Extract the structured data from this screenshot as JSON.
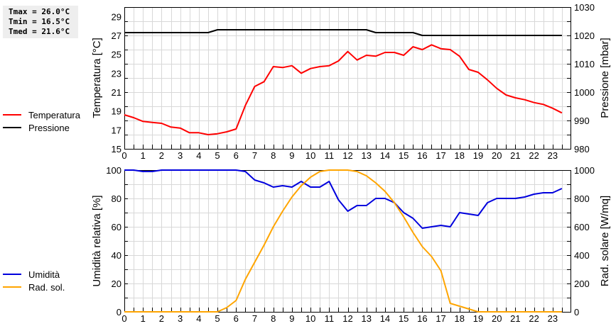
{
  "stats": {
    "tmax": "Tmax = 26.0°C",
    "tmin": "Tmin = 16.5°C",
    "tmed": "Tmed = 21.6°C"
  },
  "legend_top": [
    {
      "label": "Temperatura",
      "color": "#ff0000"
    },
    {
      "label": "Pressione",
      "color": "#000000"
    }
  ],
  "legend_bottom": [
    {
      "label": "Umidità",
      "color": "#0000dd"
    },
    {
      "label": "Rad. sol.",
      "color": "#ffa500"
    }
  ],
  "chart_data": [
    {
      "type": "line",
      "title": "",
      "xlabel": "",
      "ylabel": "Temperatura [°C]",
      "y2label": "Pressione [mbar]",
      "ylim": [
        15,
        30
      ],
      "y2lim": [
        980,
        1030
      ],
      "yticks": [
        15,
        17,
        19,
        21,
        23,
        25,
        27,
        29
      ],
      "y2ticks": [
        980,
        990,
        1000,
        1010,
        1020,
        1030
      ],
      "xticks": [
        0,
        1,
        2,
        3,
        4,
        5,
        6,
        7,
        8,
        9,
        10,
        11,
        12,
        13,
        14,
        15,
        16,
        17,
        18,
        19,
        20,
        21,
        22,
        23
      ],
      "grid": true,
      "legend_position": "left",
      "x": [
        0,
        0.5,
        1,
        1.5,
        2,
        2.5,
        3,
        3.5,
        4,
        4.5,
        5,
        5.5,
        6,
        6.5,
        7,
        7.5,
        8,
        8.5,
        9,
        9.5,
        10,
        10.5,
        11,
        11.5,
        12,
        12.5,
        13,
        13.5,
        14,
        14.5,
        15,
        15.5,
        16,
        16.5,
        17,
        17.5,
        18,
        18.5,
        19,
        19.5,
        20,
        20.5,
        21,
        21.5,
        22,
        22.5,
        23,
        23.5
      ],
      "series": [
        {
          "name": "Temperatura",
          "axis": "left",
          "color": "#ff0000",
          "values": [
            18.6,
            18.3,
            17.9,
            17.8,
            17.7,
            17.3,
            17.2,
            16.7,
            16.7,
            16.5,
            16.6,
            16.8,
            17.1,
            19.6,
            21.6,
            22.1,
            23.7,
            23.6,
            23.8,
            23.0,
            23.5,
            23.7,
            23.8,
            24.3,
            25.3,
            24.4,
            24.9,
            24.8,
            25.2,
            25.2,
            24.9,
            25.8,
            25.5,
            26.0,
            25.6,
            25.5,
            24.8,
            23.4,
            23.1,
            22.3,
            21.4,
            20.7,
            20.4,
            20.2,
            19.9,
            19.7,
            19.3,
            18.8
          ]
        },
        {
          "name": "Pressione",
          "axis": "right",
          "color": "#000000",
          "values": [
            1021,
            1021,
            1021,
            1021,
            1021,
            1021,
            1021,
            1021,
            1021,
            1021,
            1022,
            1022,
            1022,
            1022,
            1022,
            1022,
            1022,
            1022,
            1022,
            1022,
            1022,
            1022,
            1022,
            1022,
            1022,
            1022,
            1022,
            1021,
            1021,
            1021,
            1021,
            1021,
            1020,
            1020,
            1020,
            1020,
            1020,
            1020,
            1020,
            1020,
            1020,
            1020,
            1020,
            1020,
            1020,
            1020,
            1020,
            1020
          ]
        }
      ]
    },
    {
      "type": "line",
      "title": "",
      "xlabel": "",
      "ylabel": "Umidità relativa [%]",
      "y2label": "Rad. solare [W/mq]",
      "ylim": [
        0,
        100
      ],
      "y2lim": [
        0,
        1000
      ],
      "yticks": [
        0,
        20,
        40,
        60,
        80,
        100
      ],
      "y2ticks": [
        0,
        200,
        400,
        600,
        800,
        1000
      ],
      "xticks": [
        0,
        1,
        2,
        3,
        4,
        5,
        6,
        7,
        8,
        9,
        10,
        11,
        12,
        13,
        14,
        15,
        16,
        17,
        18,
        19,
        20,
        21,
        22,
        23
      ],
      "grid": true,
      "legend_position": "left",
      "x": [
        0,
        0.5,
        1,
        1.5,
        2,
        2.5,
        3,
        3.5,
        4,
        4.5,
        5,
        5.5,
        6,
        6.5,
        7,
        7.5,
        8,
        8.5,
        9,
        9.5,
        10,
        10.5,
        11,
        11.5,
        12,
        12.5,
        13,
        13.5,
        14,
        14.5,
        15,
        15.5,
        16,
        16.5,
        17,
        17.5,
        18,
        18.5,
        19,
        19.5,
        20,
        20.5,
        21,
        21.5,
        22,
        22.5,
        23,
        23.5
      ],
      "series": [
        {
          "name": "Umidità",
          "axis": "left",
          "color": "#0000dd",
          "values": [
            100,
            100,
            99,
            99,
            100,
            100,
            100,
            100,
            100,
            100,
            100,
            100,
            100,
            99,
            93,
            91,
            88,
            89,
            88,
            92,
            88,
            88,
            92,
            79,
            71,
            75,
            75,
            80,
            80,
            77,
            70,
            66,
            59,
            60,
            61,
            60,
            70,
            69,
            68,
            77,
            80,
            80,
            80,
            81,
            83,
            84,
            84,
            87
          ]
        },
        {
          "name": "Rad. sol.",
          "axis": "right",
          "color": "#ffa500",
          "values": [
            0,
            0,
            0,
            0,
            0,
            0,
            0,
            0,
            0,
            0,
            0,
            30,
            80,
            230,
            350,
            470,
            600,
            710,
            810,
            890,
            950,
            990,
            1000,
            1000,
            1000,
            990,
            960,
            910,
            850,
            770,
            670,
            560,
            460,
            390,
            290,
            60,
            40,
            20,
            0,
            0,
            0,
            0,
            0,
            0,
            0,
            0,
            0,
            0
          ]
        }
      ]
    }
  ]
}
